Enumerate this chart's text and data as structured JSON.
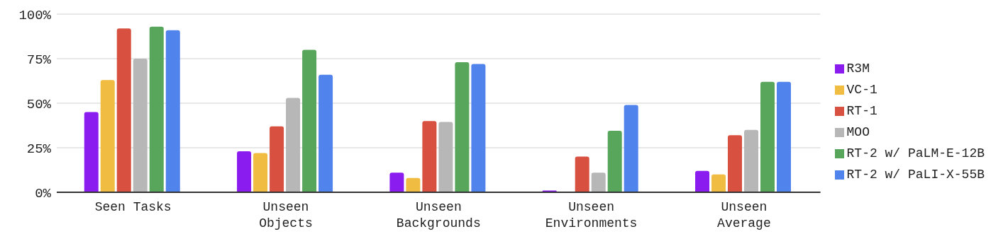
{
  "chart_data": {
    "type": "bar",
    "categories": [
      "Seen Tasks",
      "Unseen Objects",
      "Unseen Backgrounds",
      "Unseen Environments",
      "Unseen Average"
    ],
    "series": [
      {
        "name": "R3M",
        "color": "#8b1cf0",
        "values": [
          45,
          23,
          11,
          1,
          12
        ]
      },
      {
        "name": "VC-1",
        "color": "#f0bc42",
        "values": [
          63,
          22,
          8,
          0,
          10
        ]
      },
      {
        "name": "RT-1",
        "color": "#d85140",
        "values": [
          92,
          37,
          40,
          20,
          32
        ]
      },
      {
        "name": "MOO",
        "color": "#b7b7b7",
        "values": [
          75,
          53,
          39.5,
          11,
          35
        ]
      },
      {
        "name": "RT-2 w/ PaLM-E-12B",
        "color": "#58a55c",
        "values": [
          93,
          80,
          73,
          34.5,
          62
        ]
      },
      {
        "name": "RT-2 w/ PaLI-X-55B",
        "color": "#5183ec",
        "values": [
          91,
          66,
          72,
          49,
          62
        ]
      }
    ],
    "ylim": [
      0,
      100
    ],
    "yticks": [
      {
        "value": 0,
        "label": "0%"
      },
      {
        "value": 25,
        "label": "25%"
      },
      {
        "value": 50,
        "label": "50%"
      },
      {
        "value": 75,
        "label": "75%"
      },
      {
        "value": 100,
        "label": "100%"
      }
    ],
    "grid": "y",
    "legend": "right"
  }
}
